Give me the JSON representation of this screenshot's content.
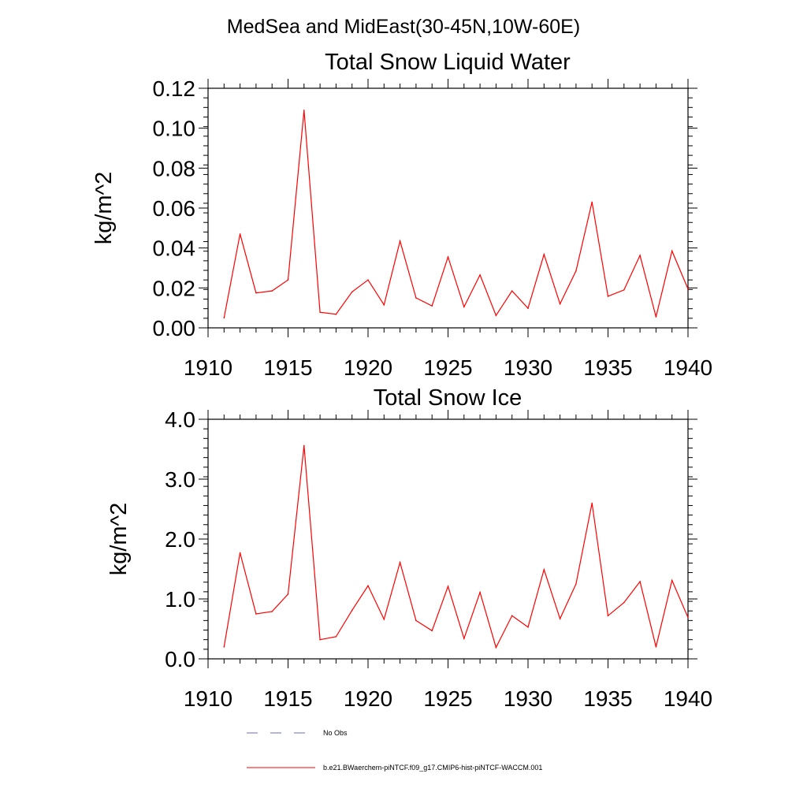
{
  "page_title": "MedSea and MidEast(30-45N,10W-60E)",
  "chart_data": [
    {
      "type": "line",
      "title": "Total Snow Liquid Water",
      "xlabel": "",
      "ylabel": "kg/m^2",
      "xlim": [
        1910,
        1940
      ],
      "ylim": [
        0,
        0.12
      ],
      "xticks": [
        "1910",
        "1915",
        "1920",
        "1925",
        "1930",
        "1935",
        "1940"
      ],
      "yticks": [
        "0.00",
        "0.02",
        "0.04",
        "0.06",
        "0.08",
        "0.10",
        "0.12"
      ],
      "x": [
        1911,
        1912,
        1913,
        1914,
        1915,
        1916,
        1917,
        1918,
        1919,
        1920,
        1921,
        1922,
        1923,
        1924,
        1925,
        1926,
        1927,
        1928,
        1929,
        1930,
        1931,
        1932,
        1933,
        1934,
        1935,
        1936,
        1937,
        1938,
        1939,
        1940
      ],
      "series": [
        {
          "name": "b.e21.BWaerchem-piNTCF.f09_g17.CMIP6-hist-piNTCF-WACCM.001",
          "color": "#ff0000",
          "values": [
            0.005,
            0.047,
            0.0175,
            0.0185,
            0.024,
            0.109,
            0.0078,
            0.0068,
            0.018,
            0.024,
            0.0115,
            0.0435,
            0.015,
            0.011,
            0.0355,
            0.0105,
            0.0265,
            0.0062,
            0.0185,
            0.0098,
            0.0368,
            0.012,
            0.0285,
            0.063,
            0.0158,
            0.019,
            0.0363,
            0.0055,
            0.0385,
            0.0195
          ]
        }
      ]
    },
    {
      "type": "line",
      "title": "Total Snow Ice",
      "xlabel": "",
      "ylabel": "kg/m^2",
      "xlim": [
        1910,
        1940
      ],
      "ylim": [
        0,
        4.0
      ],
      "xticks": [
        "1910",
        "1915",
        "1920",
        "1925",
        "1930",
        "1935",
        "1940"
      ],
      "yticks": [
        "0.0",
        "1.0",
        "2.0",
        "3.0",
        "4.0"
      ],
      "x": [
        1911,
        1912,
        1913,
        1914,
        1915,
        1916,
        1917,
        1918,
        1919,
        1920,
        1921,
        1922,
        1923,
        1924,
        1925,
        1926,
        1927,
        1928,
        1929,
        1930,
        1931,
        1932,
        1933,
        1934,
        1935,
        1936,
        1937,
        1938,
        1939,
        1940
      ],
      "series": [
        {
          "name": "b.e21.BWaerchem-piNTCF.f09_g17.CMIP6-hist-piNTCF-WACCM.001",
          "color": "#ff0000",
          "values": [
            0.2,
            1.77,
            0.75,
            0.79,
            1.08,
            3.56,
            0.32,
            0.37,
            0.81,
            1.22,
            0.66,
            1.61,
            0.64,
            0.47,
            1.21,
            0.34,
            1.11,
            0.19,
            0.72,
            0.53,
            1.49,
            0.67,
            1.25,
            2.6,
            0.72,
            0.94,
            1.29,
            0.2,
            1.31,
            0.69
          ]
        }
      ]
    }
  ],
  "legend": [
    {
      "label": "No Obs",
      "color": "#6b6bc8",
      "style": "dashed"
    },
    {
      "label": "b.e21.BWaerchem-piNTCF.f09_g17.CMIP6-hist-piNTCF-WACCM.001",
      "color": "#ff0000",
      "style": "solid"
    }
  ]
}
